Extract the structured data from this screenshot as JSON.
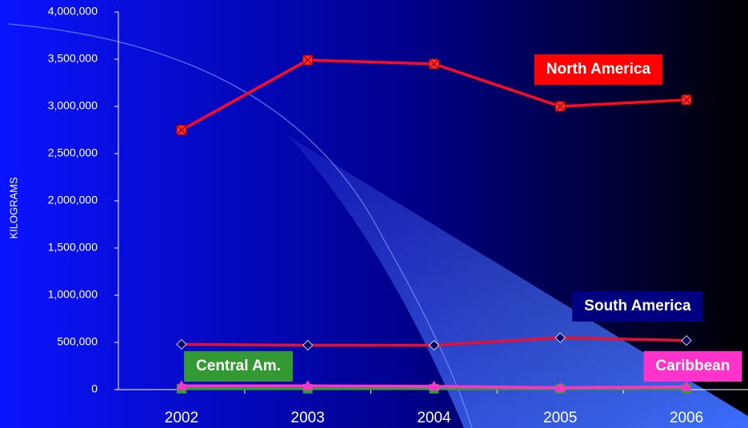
{
  "chart_data": {
    "type": "line",
    "y_label": "KILOGRAMS",
    "categories": [
      "2002",
      "2003",
      "2004",
      "2005",
      "2006"
    ],
    "ylim": [
      0,
      4000000
    ],
    "yticks": [
      {
        "value": 0,
        "label": "0"
      },
      {
        "value": 500000,
        "label": "500,000"
      },
      {
        "value": 1000000,
        "label": "1,000,000"
      },
      {
        "value": 1500000,
        "label": "1,500,000"
      },
      {
        "value": 2000000,
        "label": "2,000,000"
      },
      {
        "value": 2500000,
        "label": "2,500,000"
      },
      {
        "value": 3000000,
        "label": "3,000,000"
      },
      {
        "value": 3500000,
        "label": "3,500,000"
      },
      {
        "value": 4000000,
        "label": "4,000,000"
      }
    ],
    "grid": false,
    "series": [
      {
        "name": "North America",
        "color": "#ff0a1e",
        "marker": "square-x",
        "marker_color": "#ff2a2a",
        "label_color": "#ff0000",
        "values": [
          2750000,
          3490000,
          3450000,
          3000000,
          3070000
        ]
      },
      {
        "name": "South America",
        "color": "#e8102e",
        "marker": "diamond",
        "marker_color": "#000066",
        "label_color": "#000080",
        "values": [
          480000,
          470000,
          470000,
          550000,
          520000
        ]
      },
      {
        "name": "Central Am.",
        "color": "#3a9a3a",
        "marker": "square",
        "marker_color": "#3a9a3a",
        "label_color": "#339933",
        "values": [
          10000,
          10000,
          10000,
          10000,
          10000
        ]
      },
      {
        "name": "Caribbean",
        "color": "#ff33cc",
        "marker": "triangle",
        "marker_color": "#ff33cc",
        "label_color": "#ff33cc",
        "values": [
          40000,
          40000,
          35000,
          20000,
          30000
        ]
      }
    ]
  }
}
